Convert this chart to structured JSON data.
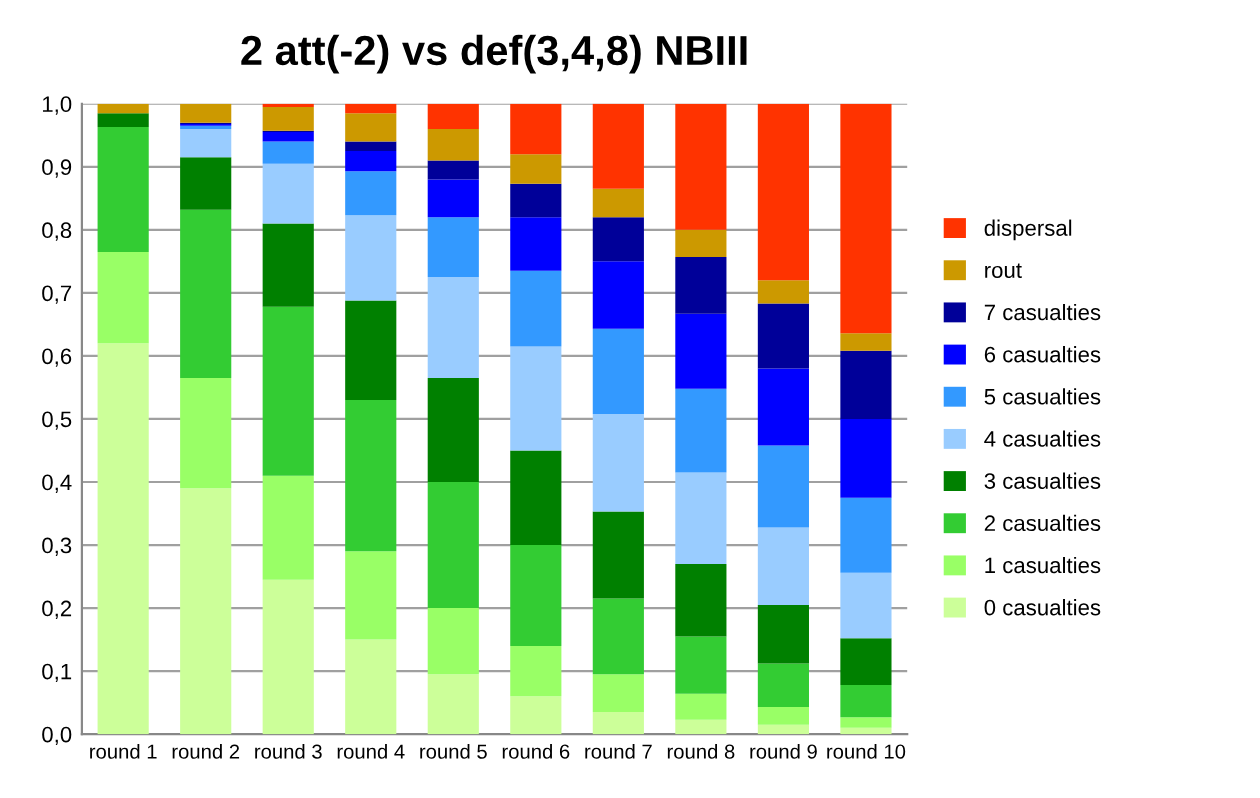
{
  "chart_data": {
    "type": "bar",
    "stacked": true,
    "title": "2 att(-2) vs def(3,4,8) NBIII",
    "categories": [
      "round 1",
      "round 2",
      "round 3",
      "round 4",
      "round 5",
      "round 6",
      "round 7",
      "round 8",
      "round 9",
      "round 10"
    ],
    "series": [
      {
        "name": "0 casualties",
        "color": "#ccff99",
        "values": [
          0.62,
          0.39,
          0.245,
          0.15,
          0.095,
          0.06,
          0.035,
          0.023,
          0.015,
          0.01
        ]
      },
      {
        "name": "1 casualties",
        "color": "#99ff66",
        "values": [
          0.145,
          0.175,
          0.165,
          0.14,
          0.105,
          0.08,
          0.06,
          0.041,
          0.028,
          0.017
        ]
      },
      {
        "name": "2 casualties",
        "color": "#33cc33",
        "values": [
          0.198,
          0.267,
          0.268,
          0.24,
          0.2,
          0.16,
          0.12,
          0.091,
          0.069,
          0.051
        ]
      },
      {
        "name": "3 casualties",
        "color": "#008000",
        "values": [
          0.022,
          0.083,
          0.132,
          0.158,
          0.165,
          0.15,
          0.138,
          0.115,
          0.093,
          0.074
        ]
      },
      {
        "name": "4 casualties",
        "color": "#99ccff",
        "values": [
          0,
          0.045,
          0.095,
          0.135,
          0.16,
          0.165,
          0.155,
          0.145,
          0.123,
          0.104
        ]
      },
      {
        "name": "5 casualties",
        "color": "#3399ff",
        "values": [
          0,
          0.005,
          0.035,
          0.07,
          0.095,
          0.12,
          0.135,
          0.133,
          0.13,
          0.119
        ]
      },
      {
        "name": "6 casualties",
        "color": "#0000ff",
        "values": [
          0,
          0.003,
          0.015,
          0.032,
          0.06,
          0.085,
          0.107,
          0.119,
          0.122,
          0.125
        ]
      },
      {
        "name": "7 casualties",
        "color": "#000099",
        "values": [
          0,
          0.002,
          0.002,
          0.015,
          0.03,
          0.053,
          0.07,
          0.09,
          0.103,
          0.108
        ]
      },
      {
        "name": "rout",
        "color": "#cc9900",
        "values": [
          0.015,
          0.03,
          0.038,
          0.045,
          0.05,
          0.047,
          0.045,
          0.043,
          0.037,
          0.028
        ]
      },
      {
        "name": "dispersal",
        "color": "#ff3300",
        "values": [
          0,
          0,
          0.005,
          0.015,
          0.04,
          0.08,
          0.135,
          0.2,
          0.28,
          0.364
        ]
      }
    ],
    "ylim": [
      0,
      1
    ],
    "yticks": [
      {
        "value": 0,
        "label": "0,0"
      },
      {
        "value": 0.1,
        "label": "0,1"
      },
      {
        "value": 0.2,
        "label": "0,2"
      },
      {
        "value": 0.3,
        "label": "0,3"
      },
      {
        "value": 0.4,
        "label": "0,4"
      },
      {
        "value": 0.5,
        "label": "0,5"
      },
      {
        "value": 0.6,
        "label": "0,6"
      },
      {
        "value": 0.7,
        "label": "0,7"
      },
      {
        "value": 0.8,
        "label": "0,8"
      },
      {
        "value": 0.9,
        "label": "0,9"
      },
      {
        "value": 1,
        "label": "1,0"
      }
    ],
    "grid": "y",
    "legend": "right"
  }
}
